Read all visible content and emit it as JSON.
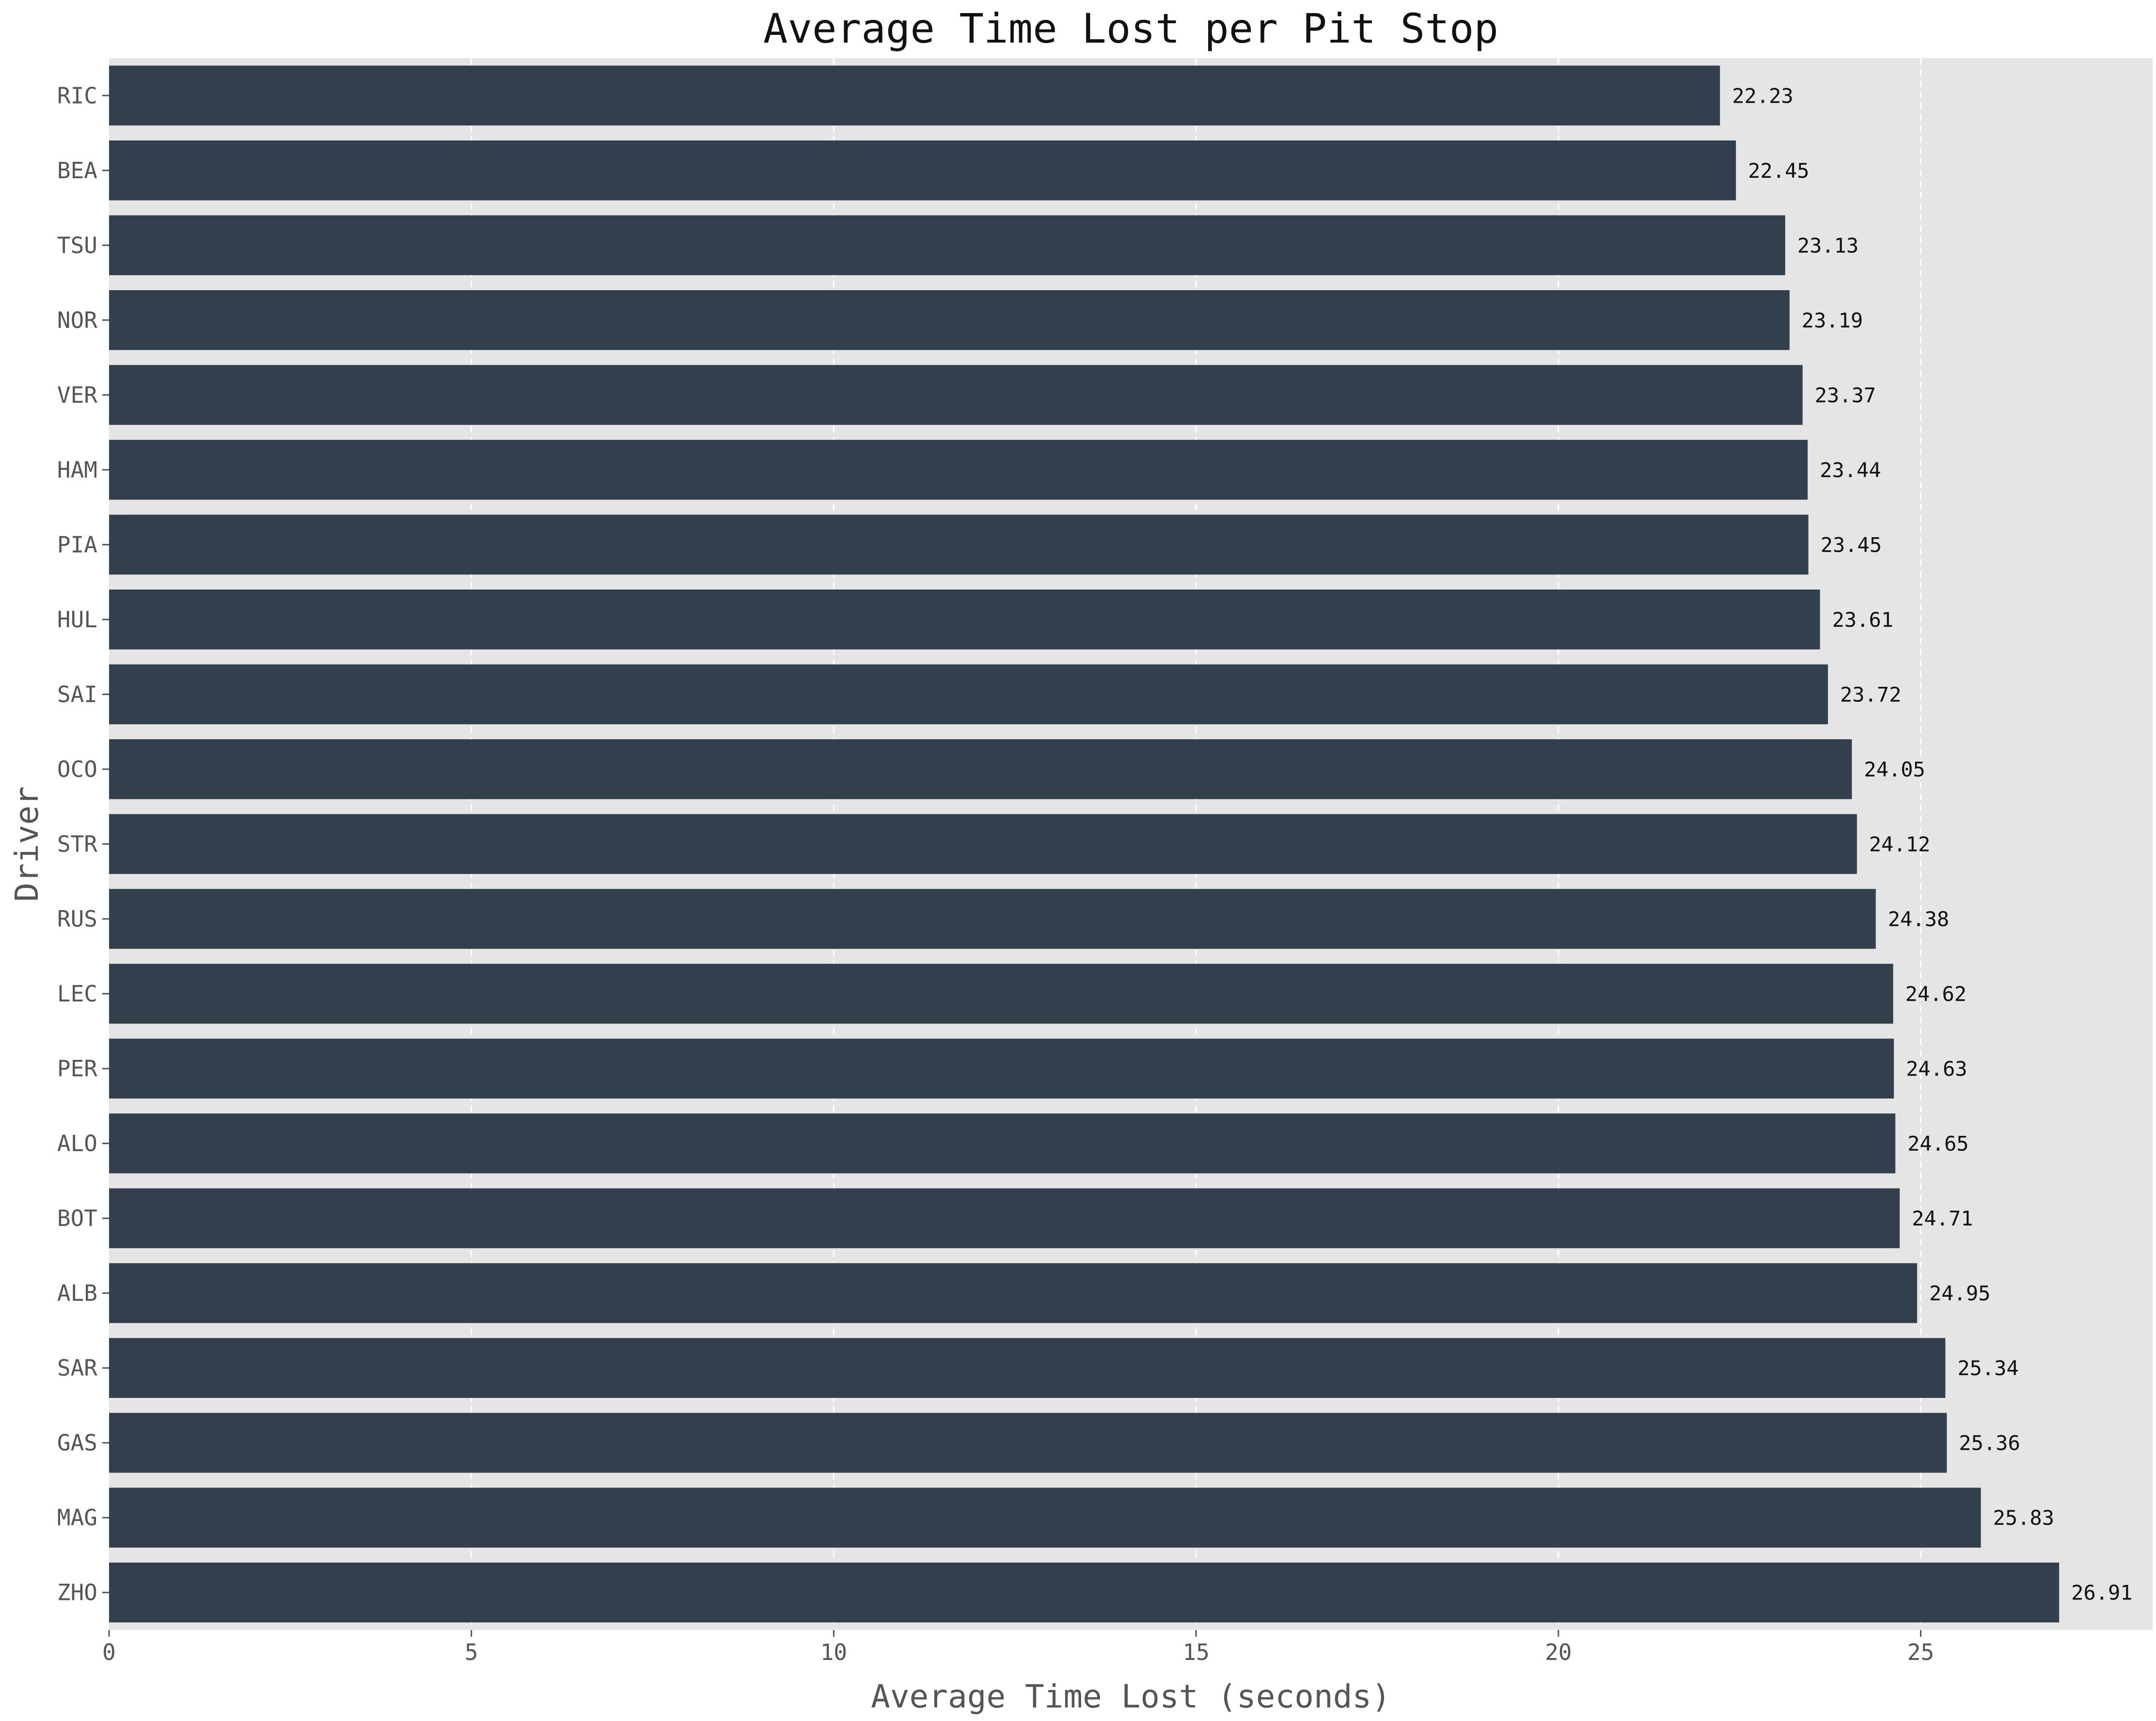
{
  "chart_data": {
    "type": "bar",
    "orientation": "horizontal",
    "title": "Average Time Lost per Pit Stop",
    "xlabel": "Average Time Lost (seconds)",
    "ylabel": "Driver",
    "xlim": [
      0,
      28.2
    ],
    "xticks": [
      0,
      5,
      10,
      15,
      20,
      25
    ],
    "grid": true,
    "categories": [
      "RIC",
      "BEA",
      "TSU",
      "NOR",
      "VER",
      "HAM",
      "PIA",
      "HUL",
      "SAI",
      "OCO",
      "STR",
      "RUS",
      "LEC",
      "PER",
      "ALO",
      "BOT",
      "ALB",
      "SAR",
      "GAS",
      "MAG",
      "ZHO"
    ],
    "values": [
      22.23,
      22.45,
      23.13,
      23.19,
      23.37,
      23.44,
      23.45,
      23.61,
      23.72,
      24.05,
      24.12,
      24.38,
      24.62,
      24.63,
      24.65,
      24.71,
      24.95,
      25.34,
      25.36,
      25.83,
      26.91
    ],
    "value_labels": [
      "22.23",
      "22.45",
      "23.13",
      "23.19",
      "23.37",
      "23.44",
      "23.45",
      "23.61",
      "23.72",
      "24.05",
      "24.12",
      "24.38",
      "24.62",
      "24.63",
      "24.65",
      "24.71",
      "24.95",
      "25.34",
      "25.36",
      "25.83",
      "26.91"
    ],
    "colors": {
      "bar": "#323f4d",
      "plot_background": "#e5e5e5",
      "grid": "#ffffff"
    }
  }
}
